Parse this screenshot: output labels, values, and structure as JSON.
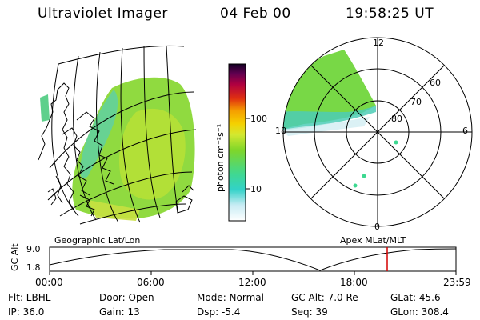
{
  "header": {
    "instrument": "Ultraviolet Imager",
    "date": "04 Feb 00",
    "time": "19:58:25 UT"
  },
  "geo_panel": {
    "label": "Geographic Lat/Lon"
  },
  "polar_panel": {
    "label": "Apex MLat/MLT",
    "mlt_labels": [
      "12",
      "18",
      "6",
      "0"
    ],
    "lat_labels": [
      "60",
      "70",
      "80"
    ]
  },
  "colorbar": {
    "unit_label": "photon cm⁻²s⁻¹",
    "tick_labels": [
      "100",
      "10"
    ]
  },
  "altitude_plot": {
    "ylabel": "GC Alt",
    "y_ticks": [
      "9.0",
      "1.8"
    ],
    "x_ticks": [
      "00:00",
      "06:00",
      "12:00",
      "18:00",
      "23:59"
    ],
    "current_time_marker": "19:58"
  },
  "info": {
    "filter": "Flt: LBHL",
    "ip": "IP: 36.0",
    "door": "Door: Open",
    "gain": "Gain: 13",
    "mode": "Mode: Normal",
    "dsp": "Dsp:  -5.4",
    "gc_alt": "GC Alt: 7.0 Re",
    "seq": "Seq: 39",
    "glat": "GLat:  45.6",
    "glon": "GLon: 308.4"
  },
  "colors": {
    "marker": "#d40000",
    "cb_top": "#110022",
    "cb_mid": "#f5a000",
    "cb_green": "#7fd62a",
    "cb_cyan": "#32d2c8"
  }
}
